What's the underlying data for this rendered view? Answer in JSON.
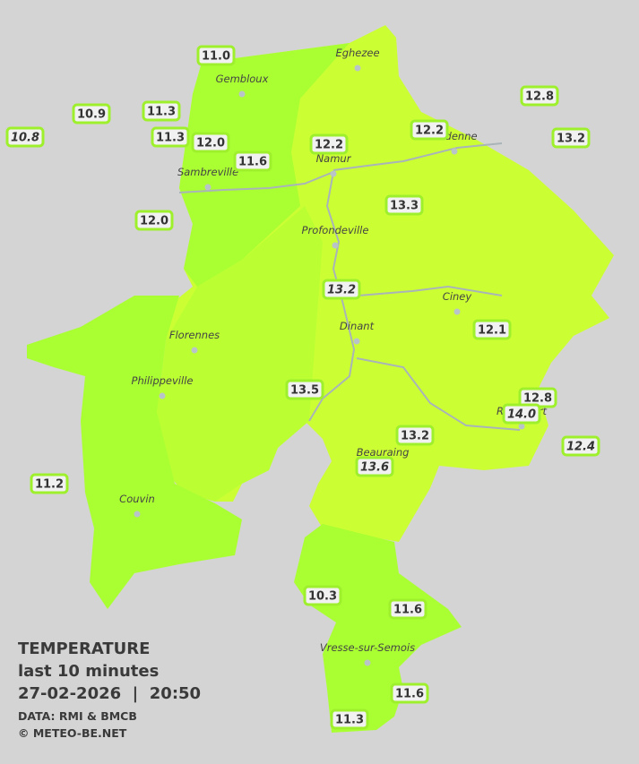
{
  "map": {
    "stations": [
      {
        "text": "11.0",
        "italic": false
      },
      {
        "text": "10.9",
        "italic": false
      },
      {
        "text": "11.3",
        "italic": false
      },
      {
        "text": "10.8",
        "italic": true
      },
      {
        "text": "11.3",
        "italic": false
      },
      {
        "text": "12.0",
        "italic": false
      },
      {
        "text": "11.6",
        "italic": false
      },
      {
        "text": "12.2",
        "italic": false
      },
      {
        "text": "12.2",
        "italic": false
      },
      {
        "text": "12.8",
        "italic": false
      },
      {
        "text": "13.2",
        "italic": false
      },
      {
        "text": "12.0",
        "italic": false
      },
      {
        "text": "13.3",
        "italic": false
      },
      {
        "text": "13.2",
        "italic": true
      },
      {
        "text": "12.1",
        "italic": false
      },
      {
        "text": "13.5",
        "italic": false
      },
      {
        "text": "12.8",
        "italic": false
      },
      {
        "text": "14.0",
        "italic": true
      },
      {
        "text": "13.2",
        "italic": false
      },
      {
        "text": "12.4",
        "italic": true
      },
      {
        "text": "13.6",
        "italic": true
      },
      {
        "text": "11.2",
        "italic": false
      },
      {
        "text": "10.3",
        "italic": false
      },
      {
        "text": "11.6",
        "italic": false
      },
      {
        "text": "11.6",
        "italic": false
      },
      {
        "text": "11.3",
        "italic": false
      }
    ],
    "cities": [
      "Eghezee",
      "Gembloux",
      "Andenne",
      "Namur",
      "Sambreville",
      "Profondeville",
      "Ciney",
      "Dinant",
      "Florennes",
      "Philippeville",
      "Rochefort",
      "Beauraing",
      "Couvin",
      "Vresse-sur-Semois"
    ]
  },
  "caption": {
    "title": "TEMPERATURE",
    "subtitle": "last 10 minutes",
    "datetime": "27-02-2026  |  20:50",
    "source": "DATA: RMI & BMCB",
    "copyright": "© METEO-BE.NET"
  }
}
